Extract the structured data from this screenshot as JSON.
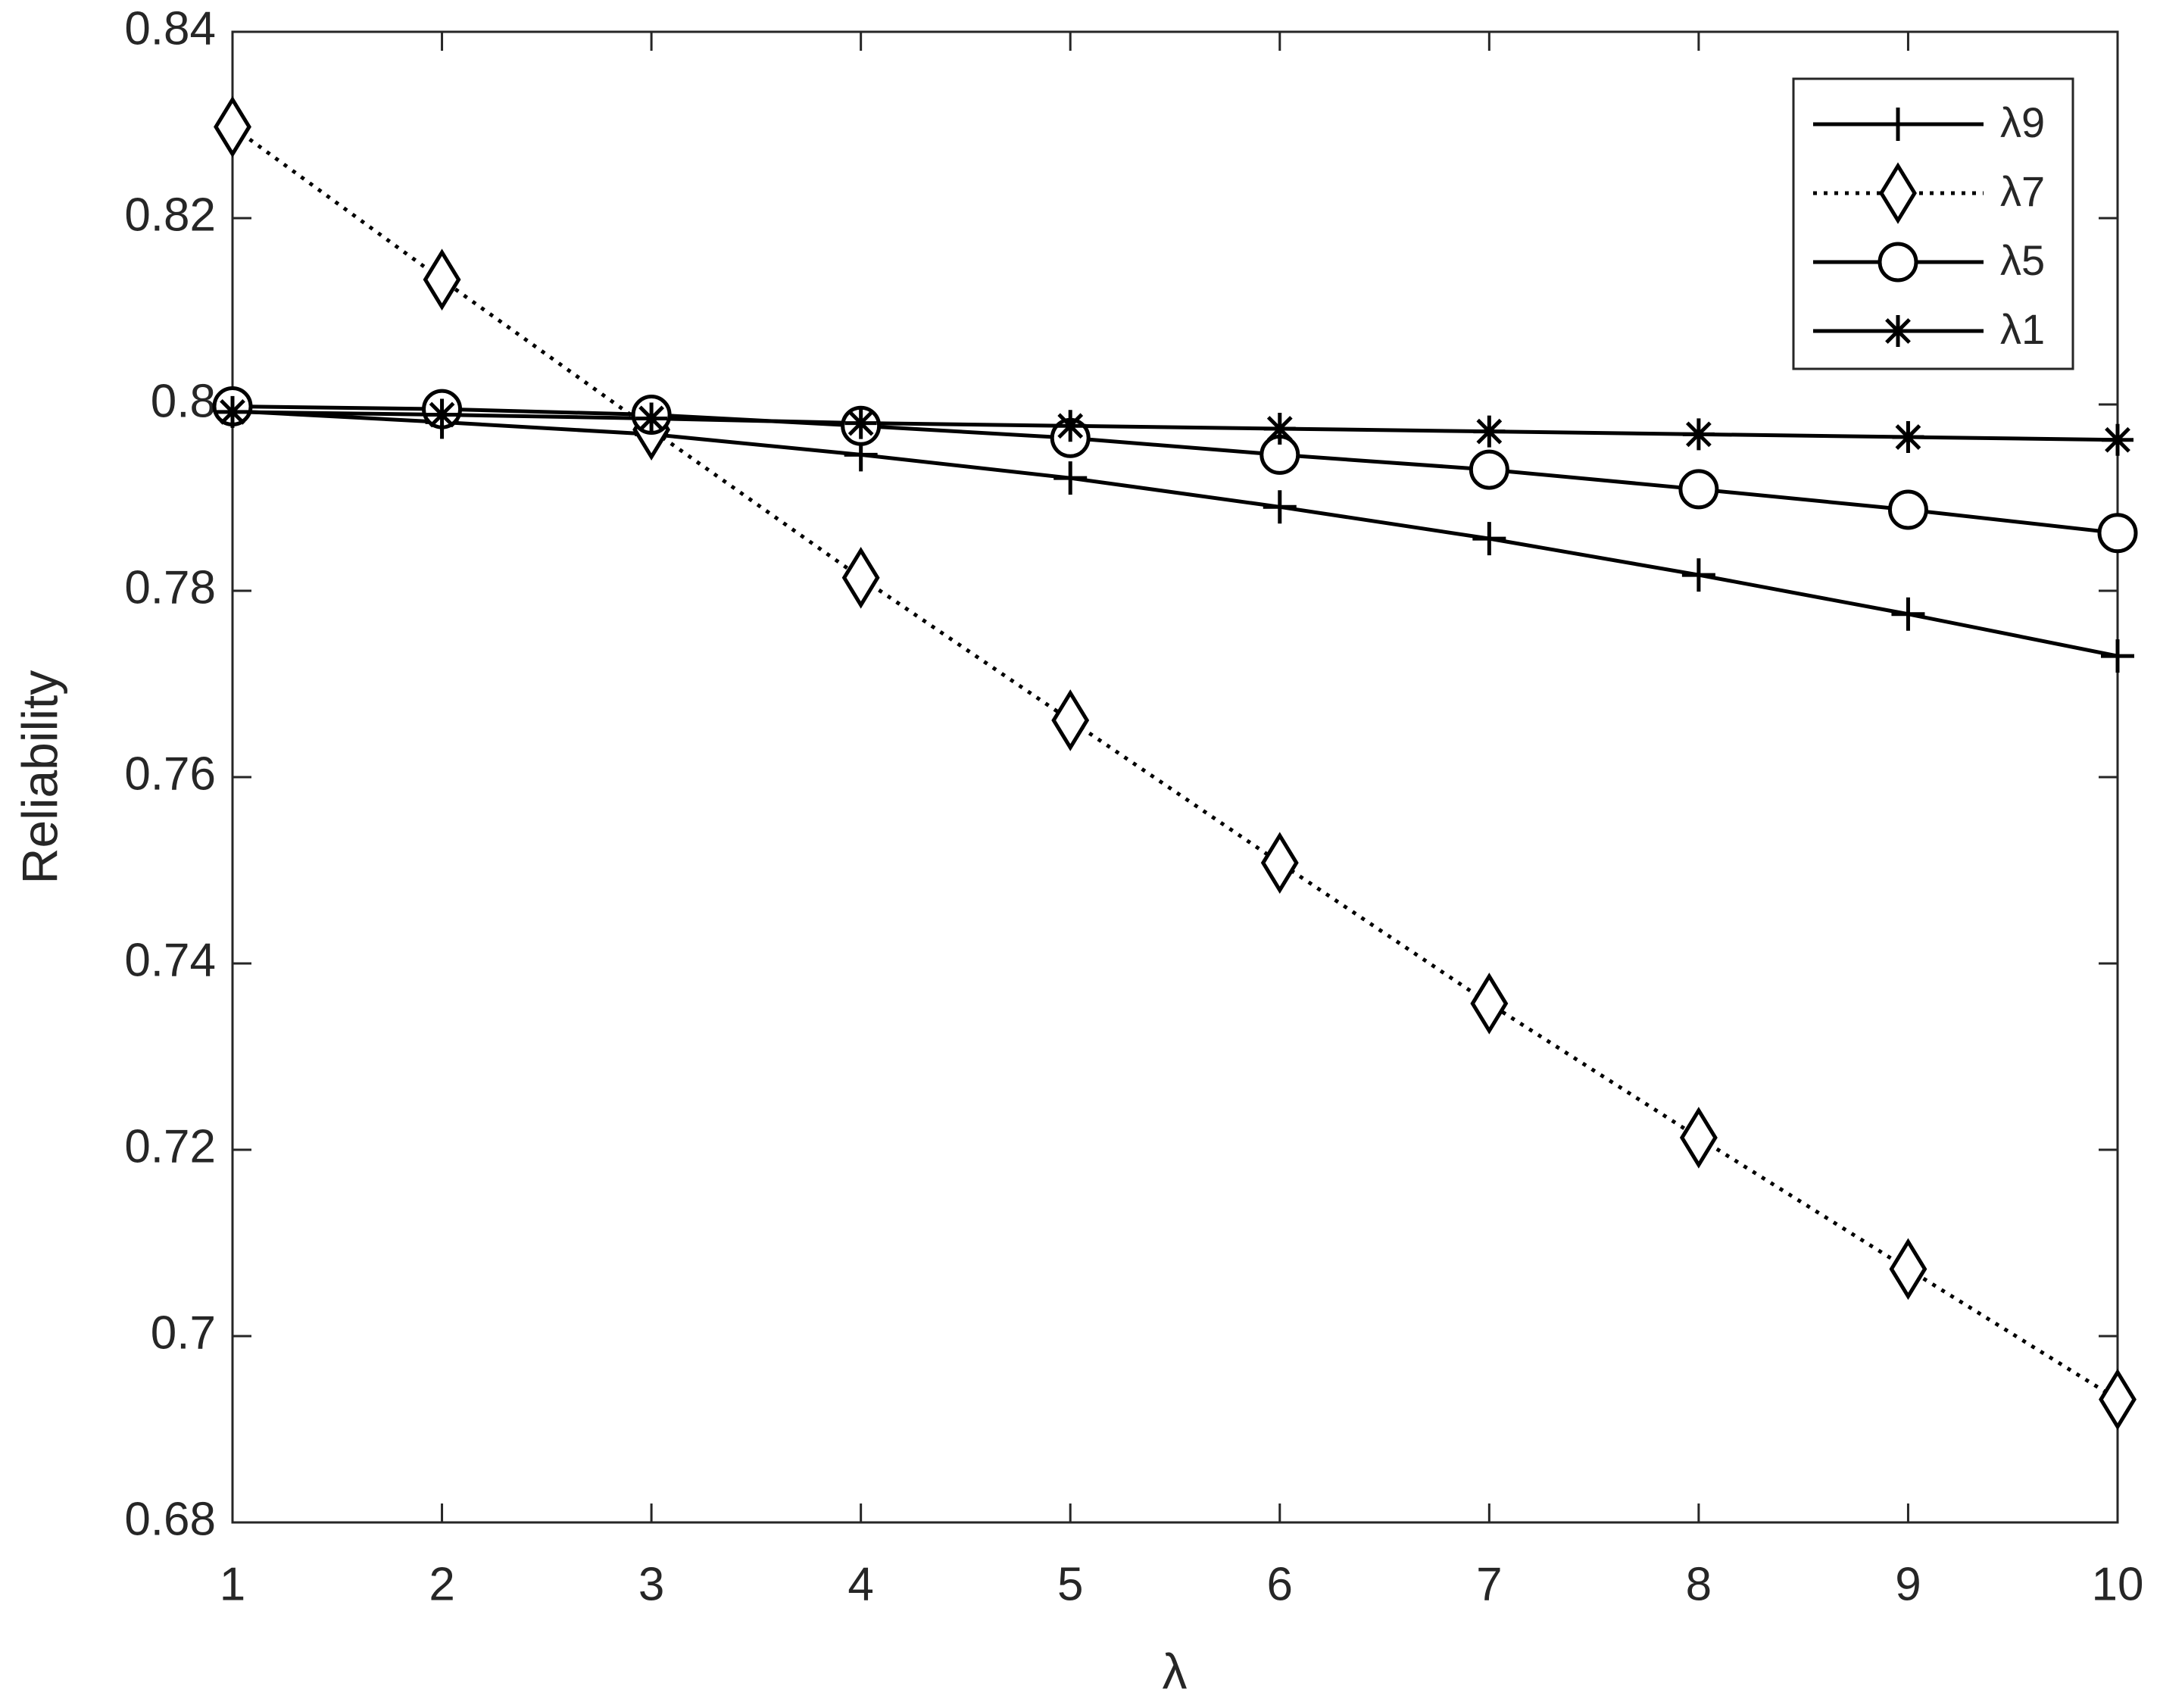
{
  "chart_data": {
    "type": "line",
    "x_label": "λ",
    "y_label": "Reliability",
    "x": [
      1,
      2,
      3,
      4,
      5,
      6,
      7,
      8,
      9,
      10
    ],
    "series": [
      {
        "name": "λ9",
        "color": "#000000",
        "linestyle": "solid",
        "marker": "plus",
        "values": [
          0.7993,
          0.7981,
          0.7968,
          0.7946,
          0.7921,
          0.789,
          0.7856,
          0.7817,
          0.7775,
          0.773
        ]
      },
      {
        "name": "λ7",
        "color": "#000000",
        "linestyle": "dotted",
        "marker": "diamond",
        "values": [
          0.8298,
          0.8134,
          0.7973,
          0.7814,
          0.7661,
          0.7508,
          0.7357,
          0.7213,
          0.7072,
          0.6932
        ]
      },
      {
        "name": "λ5",
        "color": "#000000",
        "linestyle": "solid",
        "marker": "circle",
        "values": [
          0.7998,
          0.7995,
          0.7989,
          0.7977,
          0.7964,
          0.7946,
          0.793,
          0.7909,
          0.7887,
          0.7862
        ]
      },
      {
        "name": "λ1",
        "color": "#000000",
        "linestyle": "solid",
        "marker": "star",
        "values": [
          0.7992,
          0.7989,
          0.7985,
          0.798,
          0.7977,
          0.7974,
          0.7971,
          0.7968,
          0.7965,
          0.7962
        ]
      }
    ],
    "xlim": [
      1,
      10
    ],
    "xticks": [
      1,
      2,
      3,
      4,
      5,
      6,
      7,
      8,
      9,
      10
    ],
    "ylim": [
      0.68,
      0.84
    ],
    "yticks": [
      0.68,
      0.7,
      0.72,
      0.74,
      0.76,
      0.78,
      0.8,
      0.82,
      0.84
    ],
    "grid": false,
    "legend": "upper right"
  }
}
